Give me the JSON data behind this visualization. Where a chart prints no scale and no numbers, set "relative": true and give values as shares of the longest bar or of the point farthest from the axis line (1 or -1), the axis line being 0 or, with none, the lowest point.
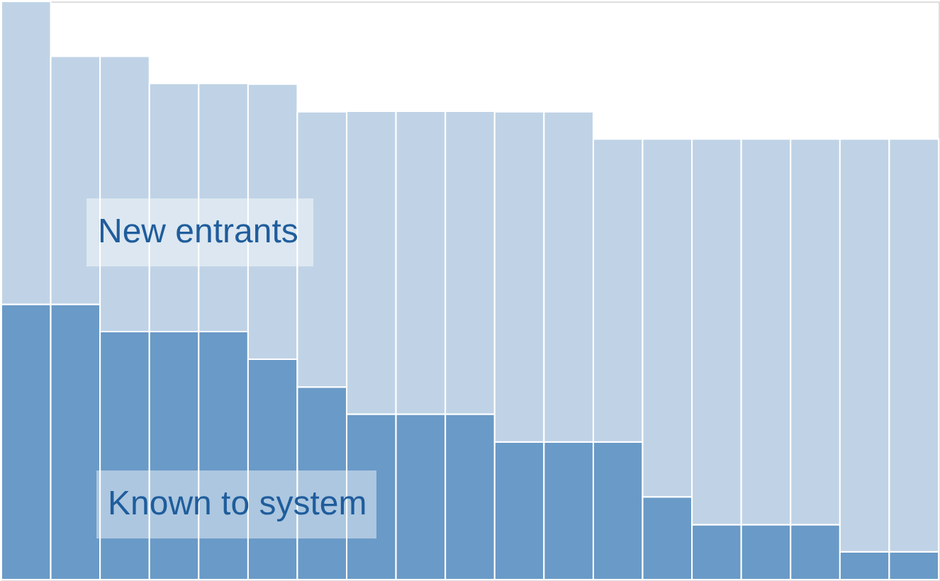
{
  "chart_data": {
    "type": "bar",
    "stacked": true,
    "relative": true,
    "legend": false,
    "categories": [
      null,
      null,
      null,
      null,
      null,
      null,
      null,
      null,
      null,
      null,
      null,
      null,
      null,
      null,
      null,
      null,
      null,
      null,
      null
    ],
    "series": [
      {
        "name": "Known to system",
        "color": "#6a9ac7",
        "values": [
          0.476,
          0.476,
          0.429,
          0.429,
          0.429,
          0.381,
          0.333,
          0.286,
          0.286,
          0.286,
          0.238,
          0.238,
          0.238,
          0.143,
          0.095,
          0.095,
          0.095,
          0.048,
          0.048
        ]
      },
      {
        "name": "New entrants",
        "color": "#c0d3e6",
        "values": [
          0.524,
          0.429,
          0.476,
          0.429,
          0.429,
          0.476,
          0.476,
          0.524,
          0.524,
          0.524,
          0.571,
          0.571,
          0.524,
          0.619,
          0.667,
          0.667,
          0.667,
          0.714,
          0.714
        ]
      }
    ]
  }
}
